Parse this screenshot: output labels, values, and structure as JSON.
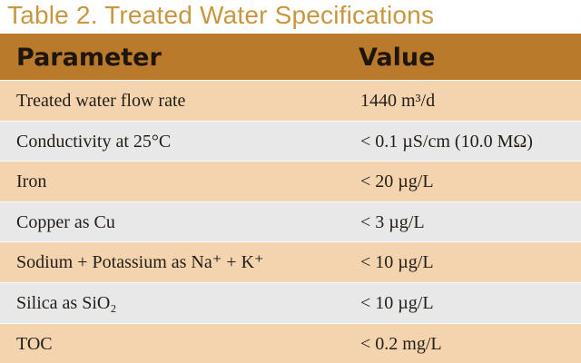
{
  "title": "Table 2. Treated Water Specifications",
  "header": {
    "parameter": "Parameter",
    "value": "Value"
  },
  "rows": [
    {
      "parameter": "Treated water flow rate",
      "value": "1440 m³/d"
    },
    {
      "parameter": "Conductivity at 25°C",
      "value": "< 0.1 µS/cm (10.0 MΩ)"
    },
    {
      "parameter": "Iron",
      "value": "< 20 µg/L"
    },
    {
      "parameter": "Copper as Cu",
      "value": "< 3 µg/L"
    },
    {
      "parameter": "Sodium + Potassium as Na⁺ + K⁺",
      "value": "< 10 µg/L"
    },
    {
      "parameter": "Silica as SiO₂",
      "value": "< 10 µg/L"
    },
    {
      "parameter": "TOC",
      "value": "< 0.2 mg/L"
    }
  ],
  "colors": {
    "title": "#c8963e",
    "header_bg": "#b97a2c",
    "row_tan": "#f3d4ae",
    "row_gray": "#e8e8e8"
  }
}
